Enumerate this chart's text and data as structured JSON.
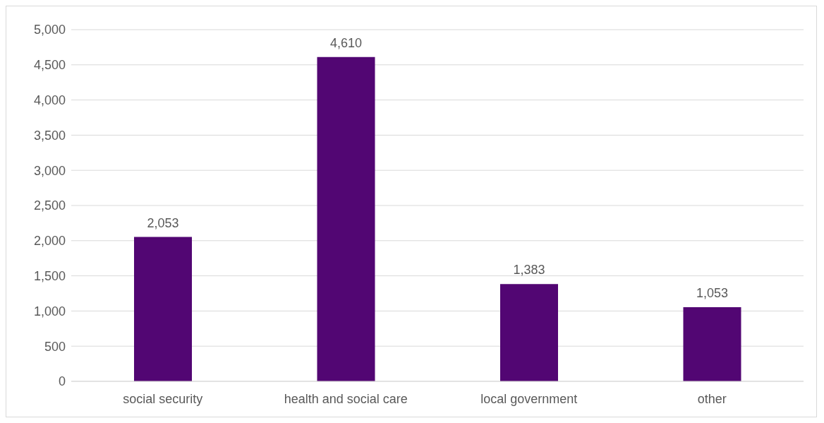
{
  "chart_data": {
    "type": "bar",
    "categories": [
      "social security",
      "health and social care",
      "local government",
      "other"
    ],
    "values": [
      2053,
      4610,
      1383,
      1053
    ],
    "value_labels": [
      "2,053",
      "4,610",
      "1,383",
      "1,053"
    ],
    "color": "#520673",
    "grid": "y",
    "ylim": [
      0,
      5000
    ],
    "yticks": [
      {
        "value": 0,
        "label": "0"
      },
      {
        "value": 500,
        "label": "500"
      },
      {
        "value": 1000,
        "label": "1,000"
      },
      {
        "value": 1500,
        "label": "1,500"
      },
      {
        "value": 2000,
        "label": "2,000"
      },
      {
        "value": 2500,
        "label": "2,500"
      },
      {
        "value": 3000,
        "label": "3,000"
      },
      {
        "value": 3500,
        "label": "3,500"
      },
      {
        "value": 4000,
        "label": "4,000"
      },
      {
        "value": 4500,
        "label": "4,500"
      },
      {
        "value": 5000,
        "label": "5,000"
      }
    ]
  }
}
